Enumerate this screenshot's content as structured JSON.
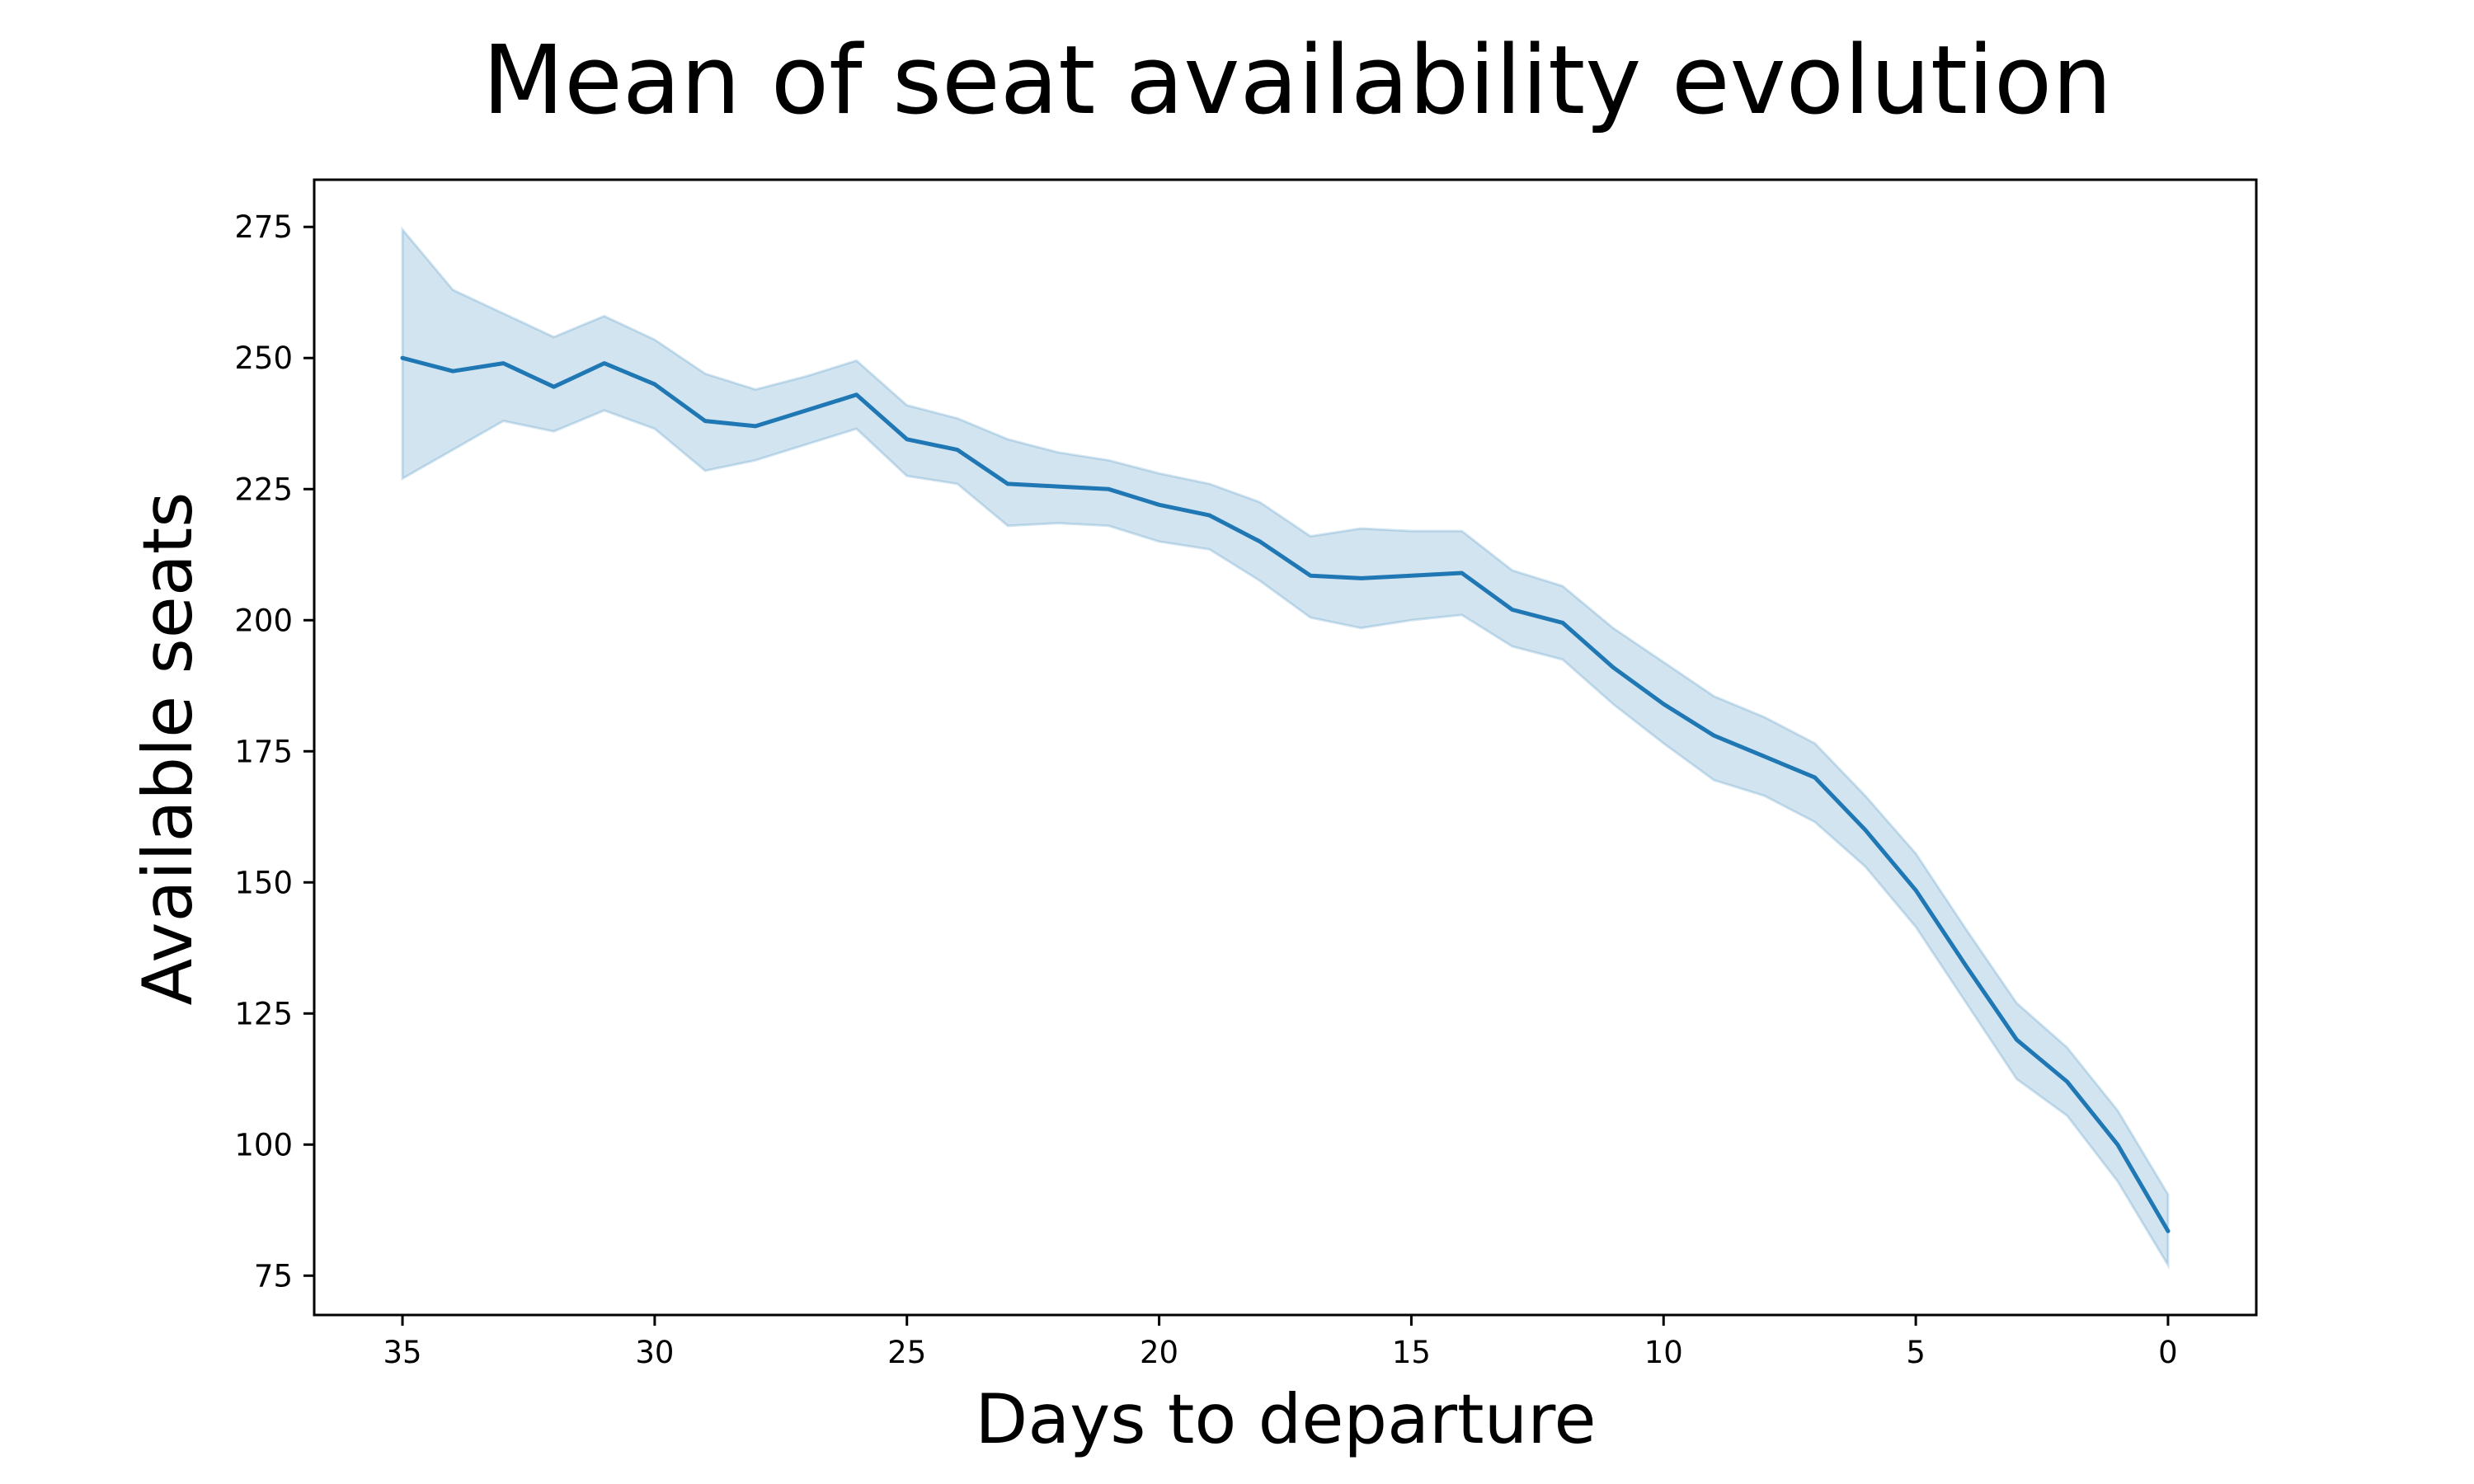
{
  "chart_data": {
    "type": "line",
    "title": "Mean of seat availability evolution",
    "xlabel": "Days to departure",
    "ylabel": "Available seats",
    "xlim": [
      36.75,
      -1.75
    ],
    "ylim": [
      67.5,
      284
    ],
    "x_inverted": true,
    "grid": false,
    "legend": "none",
    "x_ticks": [
      "35",
      "30",
      "25",
      "20",
      "15",
      "10",
      "5",
      "0"
    ],
    "y_ticks": [
      "75",
      "100",
      "125",
      "150",
      "175",
      "200",
      "225",
      "250",
      "275"
    ],
    "colors": {
      "line": "#1f77b4",
      "band": "#1f77b4"
    },
    "series": [
      {
        "x": [
          35,
          34,
          33,
          32,
          31,
          30,
          29,
          28,
          27,
          26,
          25,
          24,
          23,
          22,
          21,
          20,
          19,
          18,
          17,
          16,
          15,
          14,
          13,
          12,
          11,
          10,
          9,
          8,
          7,
          6,
          5,
          4,
          3,
          2,
          1,
          0
        ],
        "y": [
          250,
          247.5,
          249,
          244.5,
          249,
          245,
          238,
          237,
          240,
          243,
          234.5,
          232.5,
          226,
          225.5,
          225,
          222,
          220,
          215,
          208.5,
          208,
          208.5,
          209,
          202,
          199.5,
          191,
          184,
          178,
          174,
          170,
          160,
          148.5,
          134,
          120,
          112,
          100,
          83.5
        ],
        "ci_lower": [
          227,
          232.5,
          238,
          236,
          240,
          236.5,
          228.5,
          230.5,
          233.5,
          236.5,
          227.5,
          226,
          218,
          218.5,
          218,
          215,
          213.5,
          207.5,
          200.5,
          198.5,
          200,
          201,
          195,
          192.5,
          184,
          176.5,
          169.5,
          166.5,
          161.5,
          153,
          141.5,
          127,
          112.5,
          105.5,
          93,
          77
        ],
        "ci_upper": [
          274.5,
          263,
          258.5,
          254,
          258,
          253.5,
          247,
          244,
          246.5,
          249.5,
          241,
          238.5,
          234.5,
          232,
          230.5,
          228,
          226,
          222.5,
          216,
          217.5,
          217,
          217,
          209.5,
          206.5,
          198.5,
          192,
          185.5,
          181.5,
          176.5,
          166.5,
          155.5,
          141,
          127,
          118.5,
          106.5,
          90.5
        ]
      }
    ]
  }
}
